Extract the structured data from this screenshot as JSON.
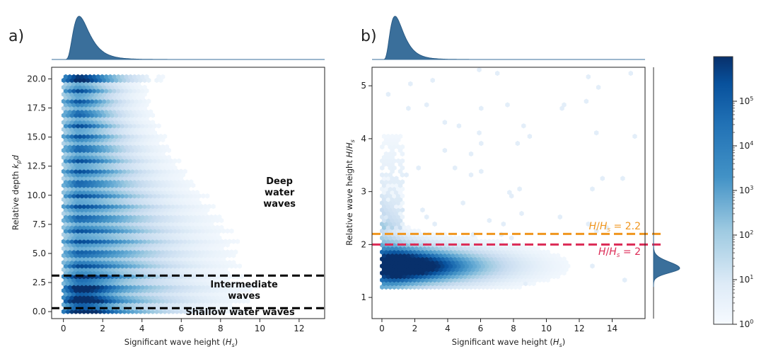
{
  "figure": {
    "panel_a_label": "a)",
    "panel_b_label": "b)"
  },
  "chart_data": [
    {
      "type": "heatmap",
      "panel": "a)",
      "xlabel": "Significant wave height (Hs)",
      "ylabel": "Relative depth kpd",
      "xlim": [
        -0.6,
        13.3
      ],
      "ylim": [
        -0.6,
        21.0
      ],
      "xticks": [
        "0",
        "2",
        "4",
        "6",
        "8",
        "10",
        "12"
      ],
      "yticks": [
        "0.0",
        "2.5",
        "5.0",
        "7.5",
        "10.0",
        "12.5",
        "15.0",
        "17.5",
        "20.0"
      ],
      "reference_lines": [
        {
          "y": 3.1,
          "color": "#000000",
          "style": "dashed"
        },
        {
          "y": 0.3,
          "color": "#000000",
          "style": "dashed"
        }
      ],
      "annotations": [
        {
          "lines": [
            "Deep",
            "water",
            "waves"
          ],
          "x": 11.0,
          "y": 10.0
        },
        {
          "lines": [
            "Intermediate",
            "waves"
          ],
          "x": 9.2,
          "y": 1.6
        },
        {
          "lines": [
            "Shallow water waves"
          ],
          "x": 9.0,
          "y": -0.3
        }
      ],
      "marginal_x": {
        "mode_x": 0.8,
        "spread_left": 0.35,
        "spread_right": 1.1
      },
      "density_peak": {
        "x": 0.9,
        "y": 1.0
      }
    },
    {
      "type": "heatmap",
      "panel": "b)",
      "xlabel": "Significant wave height (Hs)",
      "ylabel": "Relative wave height H/Hs",
      "xlim": [
        -0.6,
        16.0
      ],
      "ylim": [
        0.6,
        5.35
      ],
      "xticks": [
        "0",
        "2",
        "4",
        "6",
        "8",
        "10",
        "12",
        "14"
      ],
      "yticks": [
        "1",
        "2",
        "3",
        "4",
        "5"
      ],
      "reference_lines": [
        {
          "y": 2.2,
          "color": "#f0961e",
          "style": "dashed",
          "label": "H/Hs = 2.2"
        },
        {
          "y": 2.0,
          "color": "#dc2a55",
          "style": "dashed",
          "label": "H/Hs = 2"
        }
      ],
      "marginal_x": {
        "mode_x": 0.8
      },
      "marginal_y": {
        "mode_y": 1.55
      },
      "density_peak": {
        "x": 0.9,
        "y": 1.6
      }
    }
  ],
  "colorbar": {
    "scale": "log",
    "range": [
      1,
      1000000
    ],
    "ticks": [
      "10^0",
      "10^1",
      "10^2",
      "10^3",
      "10^4",
      "10^5"
    ],
    "color_low": "#f6faff",
    "color_high": "#08306b"
  },
  "colors": {
    "marginal_fill": "#3a6f9b",
    "marginal_edge": "#2b5c86",
    "deep_line": "#000000",
    "orange_line": "#f0961e",
    "red_line": "#dc2a55"
  }
}
